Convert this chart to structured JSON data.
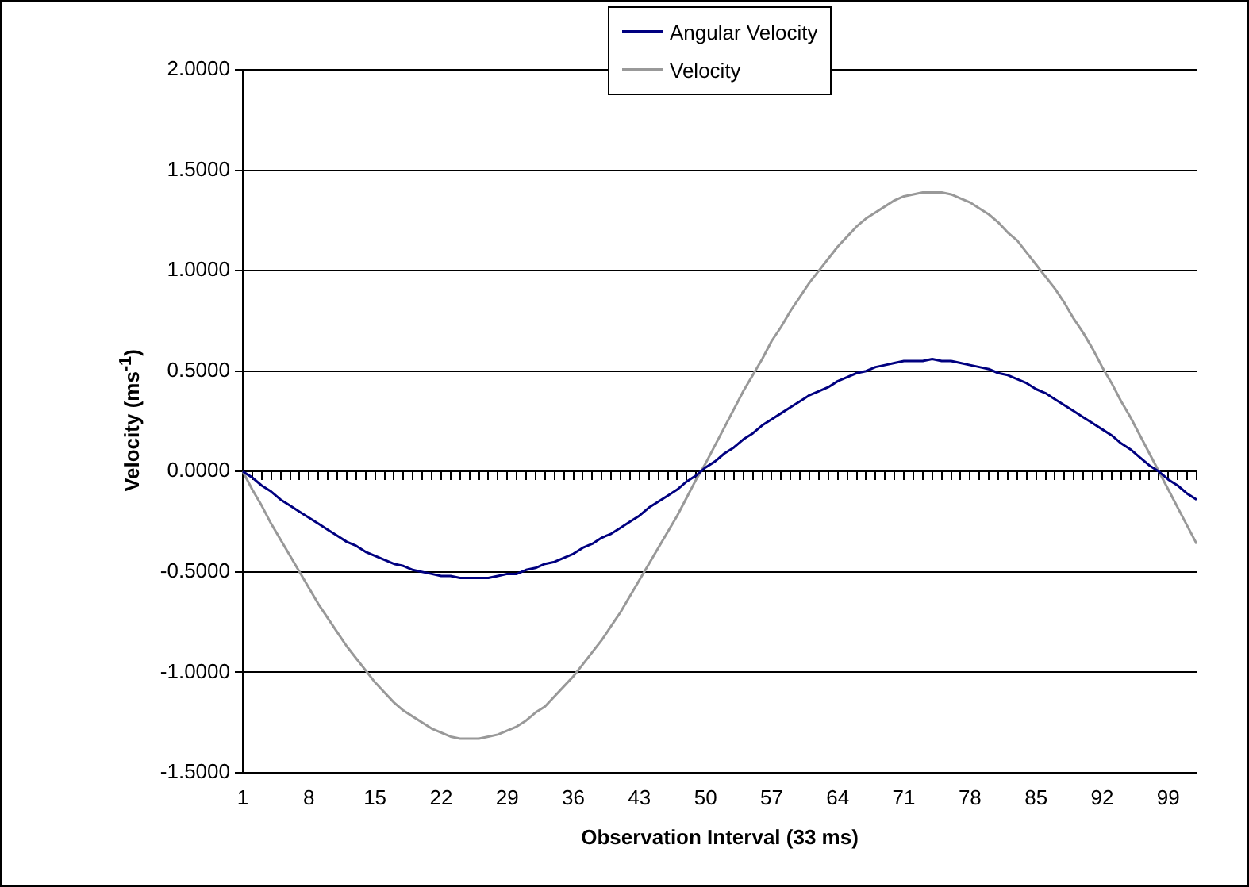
{
  "chart_data": {
    "type": "line",
    "xlabel": "Observation Interval (33 ms)",
    "ylabel": "Velocity (ms$^{-1}$)",
    "categories": [
      "1",
      null,
      null,
      null,
      null,
      null,
      null,
      "8",
      null,
      null,
      null,
      null,
      null,
      null,
      "15",
      null,
      null,
      null,
      null,
      null,
      null,
      "22",
      null,
      null,
      null,
      null,
      null,
      null,
      "29",
      null,
      null,
      null,
      null,
      null,
      null,
      "36",
      null,
      null,
      null,
      null,
      null,
      null,
      "43",
      null,
      null,
      null,
      null,
      null,
      null,
      "50",
      null,
      null,
      null,
      null,
      null,
      null,
      "57",
      null,
      null,
      null,
      null,
      null,
      null,
      "64",
      null,
      null,
      null,
      null,
      null,
      null,
      "71",
      null,
      null,
      null,
      null,
      null,
      null,
      "78",
      null,
      null,
      null,
      null,
      null,
      null,
      "85",
      null,
      null,
      null,
      null,
      null,
      null,
      "92",
      null,
      null,
      null,
      null,
      null,
      null,
      "99",
      null,
      null,
      null
    ],
    "series": [
      {
        "name": "Angular Velocity",
        "color": "#000080",
        "values": [
          0,
          -0.03,
          -0.07,
          -0.1,
          -0.14,
          -0.17,
          -0.2,
          -0.23,
          -0.26,
          -0.29,
          -0.32,
          -0.35,
          -0.37,
          -0.4,
          -0.42,
          -0.44,
          -0.46,
          -0.47,
          -0.49,
          -0.5,
          -0.51,
          -0.52,
          -0.52,
          -0.53,
          -0.53,
          -0.53,
          -0.53,
          -0.52,
          -0.51,
          -0.51,
          -0.49,
          -0.48,
          -0.46,
          -0.45,
          -0.43,
          -0.41,
          -0.38,
          -0.36,
          -0.33,
          -0.31,
          -0.28,
          -0.25,
          -0.22,
          -0.18,
          -0.15,
          -0.12,
          -0.09,
          -0.05,
          -0.02,
          0.02,
          0.05,
          0.09,
          0.12,
          0.16,
          0.19,
          0.23,
          0.26,
          0.29,
          0.32,
          0.35,
          0.38,
          0.4,
          0.42,
          0.45,
          0.47,
          0.49,
          0.5,
          0.52,
          0.53,
          0.54,
          0.55,
          0.55,
          0.55,
          0.56,
          0.55,
          0.55,
          0.54,
          0.53,
          0.52,
          0.51,
          0.49,
          0.48,
          0.46,
          0.44,
          0.41,
          0.39,
          0.36,
          0.33,
          0.3,
          0.27,
          0.24,
          0.21,
          0.18,
          0.14,
          0.11,
          0.07,
          0.03,
          0.0,
          -0.04,
          -0.07,
          -0.11,
          -0.14
        ]
      },
      {
        "name": "Velocity",
        "color": "#999999",
        "values": [
          0,
          -0.09,
          -0.17,
          -0.26,
          -0.34,
          -0.42,
          -0.5,
          -0.58,
          -0.66,
          -0.73,
          -0.8,
          -0.87,
          -0.93,
          -0.99,
          -1.05,
          -1.1,
          -1.15,
          -1.19,
          -1.22,
          -1.25,
          -1.28,
          -1.3,
          -1.32,
          -1.33,
          -1.33,
          -1.33,
          -1.32,
          -1.31,
          -1.29,
          -1.27,
          -1.24,
          -1.2,
          -1.17,
          -1.12,
          -1.07,
          -1.02,
          -0.96,
          -0.9,
          -0.84,
          -0.77,
          -0.7,
          -0.62,
          -0.54,
          -0.46,
          -0.38,
          -0.3,
          -0.22,
          -0.13,
          -0.04,
          0.04,
          0.13,
          0.22,
          0.31,
          0.4,
          0.48,
          0.56,
          0.65,
          0.72,
          0.8,
          0.87,
          0.94,
          1.0,
          1.06,
          1.12,
          1.17,
          1.22,
          1.26,
          1.29,
          1.32,
          1.35,
          1.37,
          1.38,
          1.39,
          1.39,
          1.39,
          1.38,
          1.36,
          1.34,
          1.31,
          1.28,
          1.24,
          1.19,
          1.15,
          1.09,
          1.03,
          0.97,
          0.91,
          0.84,
          0.76,
          0.69,
          0.61,
          0.52,
          0.44,
          0.35,
          0.27,
          0.18,
          0.09,
          0.0,
          -0.09,
          -0.18,
          -0.27,
          -0.36
        ]
      }
    ],
    "ylim": [
      -1.5,
      2
    ],
    "yticks": [
      {
        "value": -1.5,
        "label": "-1.5000"
      },
      {
        "value": -1,
        "label": "-1.0000"
      },
      {
        "value": -0.5,
        "label": "-0.5000"
      },
      {
        "value": 0,
        "label": "0.0000"
      },
      {
        "value": 0.5,
        "label": "0.5000"
      },
      {
        "value": 1,
        "label": "1.0000"
      },
      {
        "value": 1.5,
        "label": "1.5000"
      },
      {
        "value": 2,
        "label": "2.0000"
      }
    ],
    "grid": "y",
    "legend": "top",
    "marker": "none",
    "line_style": "solid"
  }
}
